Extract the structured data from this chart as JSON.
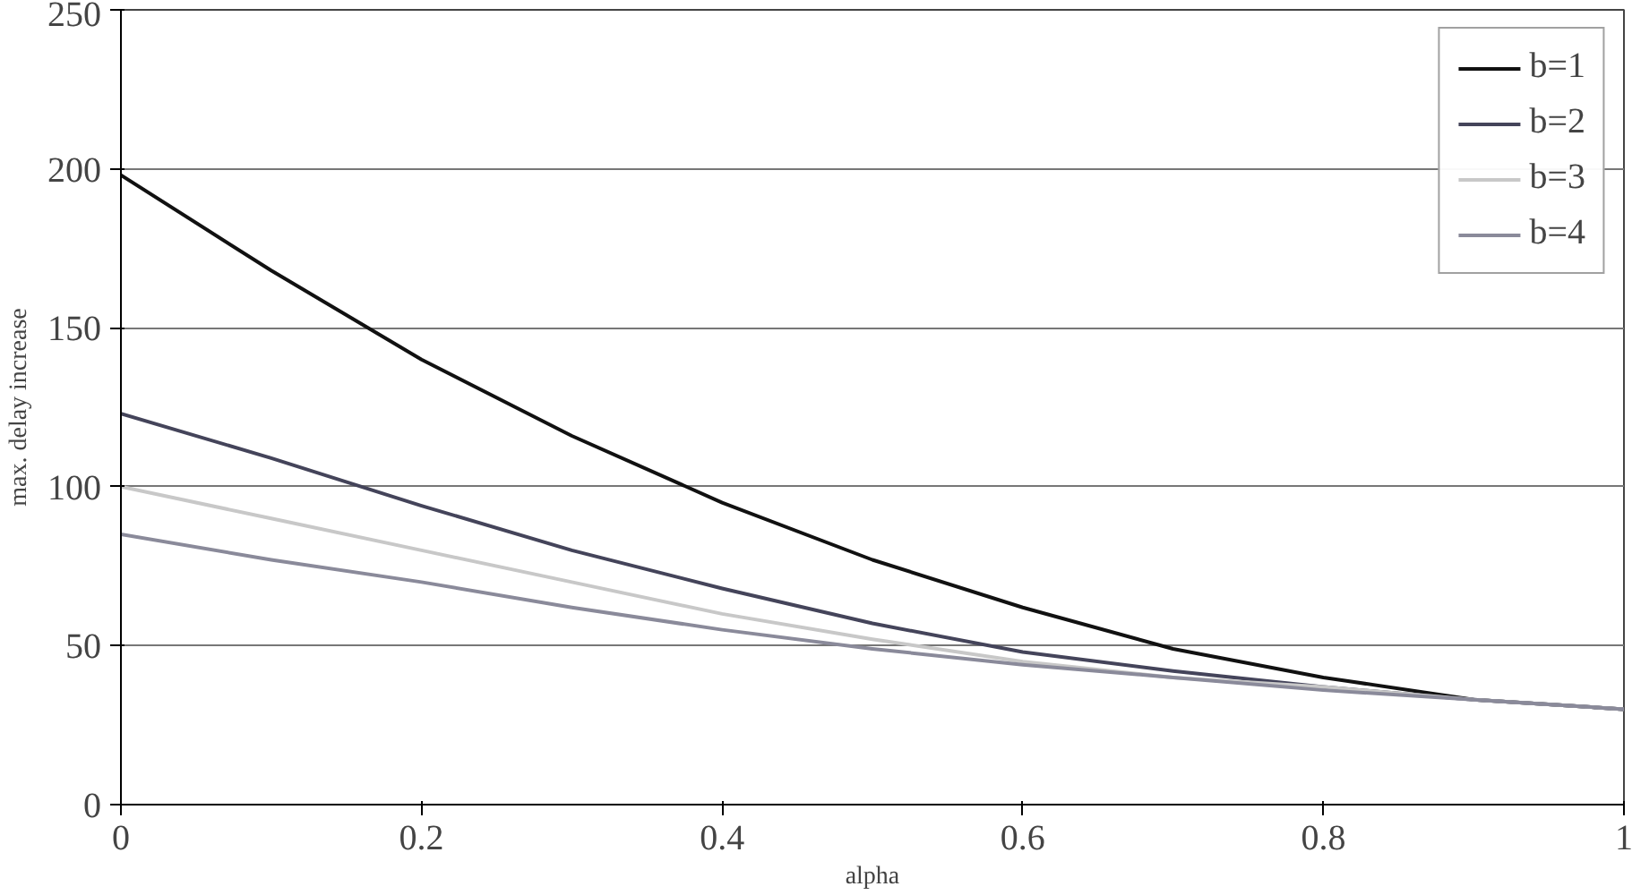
{
  "chart_data": {
    "type": "line",
    "xlabel": "alpha",
    "ylabel": "max. delay increase",
    "x": [
      0,
      0.1,
      0.2,
      0.3,
      0.4,
      0.5,
      0.6,
      0.7,
      0.8,
      0.9,
      1
    ],
    "series": [
      {
        "name": "b=1",
        "color": "#111111",
        "values": [
          198,
          168,
          140,
          116,
          95,
          77,
          62,
          49,
          40,
          33,
          30
        ]
      },
      {
        "name": "b=2",
        "color": "#44445a",
        "values": [
          123,
          109,
          94,
          80,
          68,
          57,
          48,
          42,
          37,
          33,
          30
        ]
      },
      {
        "name": "b=3",
        "color": "#c8c8c8",
        "values": [
          100,
          90,
          80,
          70,
          60,
          52,
          45,
          40,
          37,
          33,
          30
        ]
      },
      {
        "name": "b=4",
        "color": "#8a8a9a",
        "values": [
          85,
          77,
          70,
          62,
          55,
          49,
          44,
          40,
          36,
          33,
          30
        ]
      }
    ],
    "xlim": [
      0,
      1
    ],
    "ylim": [
      0,
      250
    ],
    "xticks": [
      0,
      0.2,
      0.4,
      0.6,
      0.8,
      1
    ],
    "yticks": [
      0,
      50,
      100,
      150,
      200,
      250
    ],
    "grid": "y",
    "legend": "top right",
    "line_style": "solid"
  }
}
